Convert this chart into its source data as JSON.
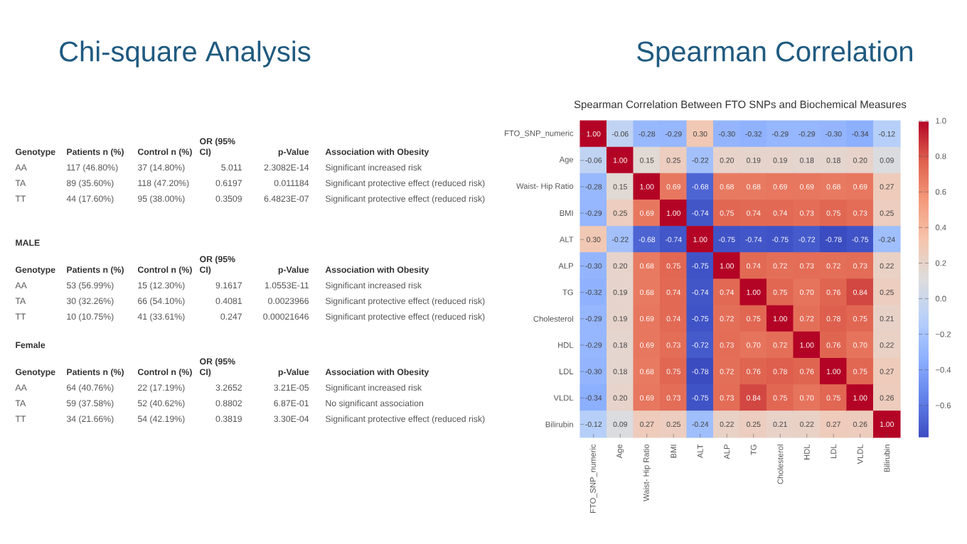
{
  "chart_data": [
    {
      "type": "other",
      "title": "Chi-square Analysis",
      "annotations": [
        "Genotype",
        "Patients n (%)",
        "Control n (%)",
        "OR (95% CI)",
        "p-Value",
        "Association with Obesity",
        "AA",
        "117 (46.80%)",
        "37 (14.80%)",
        "5.011",
        "2.3082E-14",
        "Significant increased risk",
        "TA",
        "89 (35.60%)",
        "118 (47.20%)",
        "0.6197",
        "0.011184",
        "Significant protective effect (reduced risk)",
        "TT",
        "44 (17.60%)",
        "95 (38.00%)",
        "0.3509",
        "6.4823E-07",
        "Significant protective effect (reduced risk)",
        "MALE",
        "Genotype",
        "Patients n (%)",
        "Control n (%)",
        "OR (95% CI)",
        "p-Value",
        "Association with Obesity",
        "AA",
        "53 (56.99%)",
        "15 (12.30%)",
        "9.1617",
        "1.0553E-11",
        "Significant increased risk",
        "TA",
        "30 (32.26%)",
        "66 (54.10%)",
        "0.4081",
        "0.0023966",
        "Significant protective effect (reduced risk)",
        "TT",
        "10 (10.75%)",
        "41 (33.61%)",
        "0.247",
        "0.00021646",
        "Significant protective effect (reduced risk)",
        "Female",
        "Genotype",
        "Patients n (%)",
        "Control n (%)",
        "OR (95% CI)",
        "p-Value",
        "Association with Obesity",
        "AA",
        "64 (40.76%)",
        "22 (17.19%)",
        "3.2652",
        "3.21E-05",
        "Significant increased risk",
        "TA",
        "59 (37.58%)",
        "52 (40.62%)",
        "0.8802",
        "6.87E-01",
        "No significant association",
        "TT",
        "34 (21.66%)",
        "54 (42.19%)",
        "0.3819",
        "3.30E-04",
        "Significant protective effect (reduced risk)"
      ]
    },
    {
      "type": "heatmap",
      "title": "Spearman Correlation",
      "subtitle": "Spearman Correlation Between FTO SNPs and Biochemical Measures",
      "categories": [
        "FTO_SNP_numeric",
        "Age",
        "Waist- Hip Ratio",
        "BMI",
        "ALT",
        "ALP",
        "TG",
        "Cholesterol",
        "HDL",
        "LDL",
        "VLDL",
        "Bilirubin"
      ],
      "y_categories": [
        "FTO_SNP_numeric",
        "Age",
        "Waist- Hip Ratio",
        "BMI",
        "ALT",
        "ALP",
        "TG",
        "Cholesterol",
        "HDL",
        "LDL",
        "VLDL",
        "Bilirubin"
      ],
      "cells": [
        [
          1.0,
          -0.06,
          -0.28,
          -0.29,
          0.3,
          -0.3,
          -0.32,
          -0.29,
          -0.29,
          -0.3,
          -0.34,
          -0.12
        ],
        [
          -0.06,
          1.0,
          0.15,
          0.25,
          -0.22,
          0.2,
          0.19,
          0.19,
          0.18,
          0.18,
          0.2,
          0.09
        ],
        [
          -0.28,
          0.15,
          1.0,
          0.69,
          -0.68,
          0.68,
          0.68,
          0.69,
          0.69,
          0.68,
          0.69,
          0.27
        ],
        [
          -0.29,
          0.25,
          0.69,
          1.0,
          -0.74,
          0.75,
          0.74,
          0.74,
          0.73,
          0.75,
          0.73,
          0.25
        ],
        [
          0.3,
          -0.22,
          -0.68,
          -0.74,
          1.0,
          -0.75,
          -0.74,
          -0.75,
          -0.72,
          -0.78,
          -0.75,
          -0.24
        ],
        [
          -0.3,
          0.2,
          0.68,
          0.75,
          -0.75,
          1.0,
          0.74,
          0.72,
          0.73,
          0.72,
          0.73,
          0.22
        ],
        [
          -0.32,
          0.19,
          0.68,
          0.74,
          -0.74,
          0.74,
          1.0,
          0.75,
          0.7,
          0.76,
          0.84,
          0.25
        ],
        [
          -0.29,
          0.19,
          0.69,
          0.74,
          -0.75,
          0.72,
          0.75,
          1.0,
          0.72,
          0.78,
          0.75,
          0.21
        ],
        [
          -0.29,
          0.18,
          0.69,
          0.73,
          -0.72,
          0.73,
          0.7,
          0.72,
          1.0,
          0.76,
          0.7,
          0.22
        ],
        [
          -0.3,
          0.18,
          0.68,
          0.75,
          -0.78,
          0.72,
          0.76,
          0.78,
          0.76,
          1.0,
          0.75,
          0.27
        ],
        [
          -0.34,
          0.2,
          0.69,
          0.73,
          -0.75,
          0.73,
          0.84,
          0.75,
          0.7,
          0.75,
          1.0,
          0.26
        ],
        [
          -0.12,
          0.09,
          0.27,
          0.25,
          -0.24,
          0.22,
          0.25,
          0.21,
          0.22,
          0.27,
          0.26,
          1.0
        ]
      ],
      "cell_labels": [
        [
          "1.00",
          "-0.06",
          "-0.28",
          "-0.29",
          "0.30",
          "-0.30",
          "-0.32",
          "-0.29",
          "-0.29",
          "-0.30",
          "-0.34",
          "-0.12"
        ],
        [
          "-0.06",
          "1.00",
          "0.15",
          "0.25",
          "-0.22",
          "0.20",
          "0.19",
          "0.19",
          "0.18",
          "0.18",
          "0.20",
          "0.09"
        ],
        [
          "-0.28",
          "0.15",
          "1.00",
          "0.69",
          "-0.68",
          "0.68",
          "0.68",
          "0.69",
          "0.69",
          "0.68",
          "0.69",
          "0.27"
        ],
        [
          "-0.29",
          "0.25",
          "0.69",
          "1.00",
          "-0.74",
          "0.75",
          "0.74",
          "0.74",
          "0.73",
          "0.75",
          "0.73",
          "0.25"
        ],
        [
          "0.30",
          "-0.22",
          "-0.68",
          "-0.74",
          "1.00",
          "-0.75",
          "-0.74",
          "-0.75",
          "-0.72",
          "-0.78",
          "-0.75",
          "-0.24"
        ],
        [
          "-0.30",
          "0.20",
          "0.68",
          "0.75",
          "-0.75",
          "1.00",
          "0.74",
          "0.72",
          "0.73",
          "0.72",
          "0.73",
          "0.22"
        ],
        [
          "-0.32",
          "0.19",
          "0.68",
          "0.74",
          "-0.74",
          "0.74",
          "1.00",
          "0.75",
          "0.70",
          "0.76",
          "0.84",
          "0.25"
        ],
        [
          "-0.29",
          "0.19",
          "0.69",
          "0.74",
          "-0.75",
          "0.72",
          "0.75",
          "1.00",
          "0.72",
          "0.78",
          "0.75",
          "0.21"
        ],
        [
          "-0.29",
          "0.18",
          "0.69",
          "0.73",
          "-0.72",
          "0.73",
          "0.70",
          "0.72",
          "1.00",
          "0.76",
          "0.70",
          "0.22"
        ],
        [
          "-0.30",
          "0.18",
          "0.68",
          "0.75",
          "-0.78",
          "0.72",
          "0.76",
          "0.78",
          "0.76",
          "1.00",
          "0.75",
          "0.27"
        ],
        [
          "-0.34",
          "0.20",
          "0.69",
          "0.73",
          "-0.75",
          "0.73",
          "0.84",
          "0.75",
          "0.70",
          "0.75",
          "1.00",
          "0.26"
        ],
        [
          "-0.12",
          "0.09",
          "0.27",
          "0.25",
          "-0.24",
          "0.22",
          "0.25",
          "0.21",
          "0.22",
          "0.27",
          "0.26",
          "1.00"
        ]
      ],
      "clim": [
        -0.78,
        1.0
      ],
      "cticks": [
        {
          "value": 1.0,
          "label": "1.0"
        },
        {
          "value": 0.8,
          "label": "0.8"
        },
        {
          "value": 0.6,
          "label": "0.6"
        },
        {
          "value": 0.4,
          "label": "0.4"
        },
        {
          "value": 0.2,
          "label": "0.2"
        },
        {
          "value": 0.0,
          "label": "0.0"
        },
        {
          "value": -0.2,
          "label": "−0.2"
        },
        {
          "value": -0.4,
          "label": "−0.4"
        },
        {
          "value": -0.6,
          "label": "−0.6"
        }
      ]
    }
  ]
}
